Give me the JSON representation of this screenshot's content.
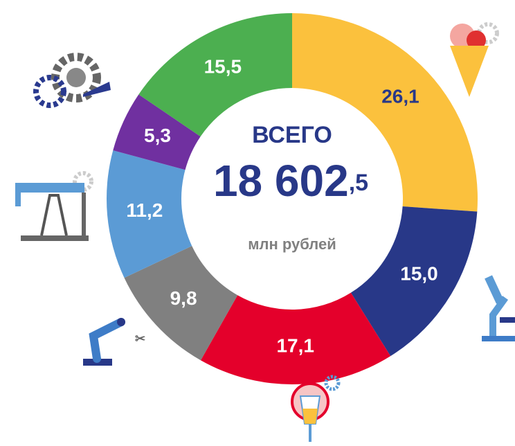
{
  "chart_data": {
    "type": "donut",
    "categories": [
      null,
      null,
      null,
      null,
      null,
      null,
      null
    ],
    "values": [
      26.1,
      15.0,
      17.1,
      9.8,
      11.2,
      5.3,
      15.5
    ],
    "value_labels": [
      "26,1",
      "15,0",
      "17,1",
      "9,8",
      "11,2",
      "5,3",
      "15,5"
    ],
    "colors": [
      "#fbc13d",
      "#283888",
      "#e4002b",
      "#808080",
      "#5b9bd5",
      "#7030a0",
      "#4caf50"
    ],
    "label_colors": [
      "#283888",
      "#ffffff",
      "#ffffff",
      "#ffffff",
      "#ffffff",
      "#ffffff",
      "#ffffff"
    ],
    "center_title": "ВСЕГО",
    "center_value_main": "18 602",
    "center_value_fraction": ",5",
    "center_unit": "млн рублей"
  }
}
